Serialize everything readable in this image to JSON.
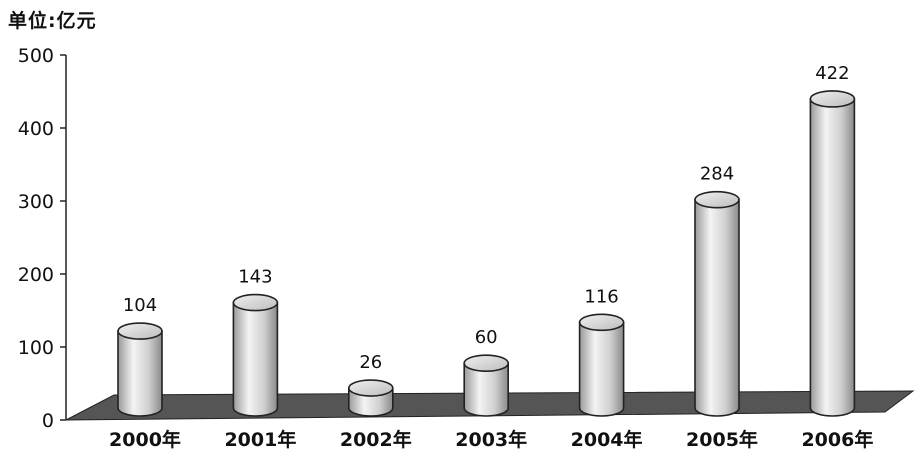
{
  "chart_data": {
    "type": "bar",
    "unit_label": "单位:亿元",
    "categories": [
      "2000年",
      "2001年",
      "2002年",
      "2003年",
      "2004年",
      "2005年",
      "2006年"
    ],
    "values": [
      104,
      143,
      26,
      60,
      116,
      284,
      422
    ],
    "data_labels": [
      "104",
      "143",
      "26",
      "60",
      "116",
      "284",
      "422"
    ],
    "ylim": [
      0,
      500
    ],
    "yticks": [
      0,
      100,
      200,
      300,
      400,
      500
    ],
    "ytick_labels": [
      "0",
      "100",
      "200",
      "300",
      "400",
      "500"
    ],
    "grid": false,
    "style": "3d-cylinder",
    "colors": {
      "bar_fill": "#d8d8d8",
      "bar_edge": "#222222",
      "floor": "#555555"
    }
  }
}
